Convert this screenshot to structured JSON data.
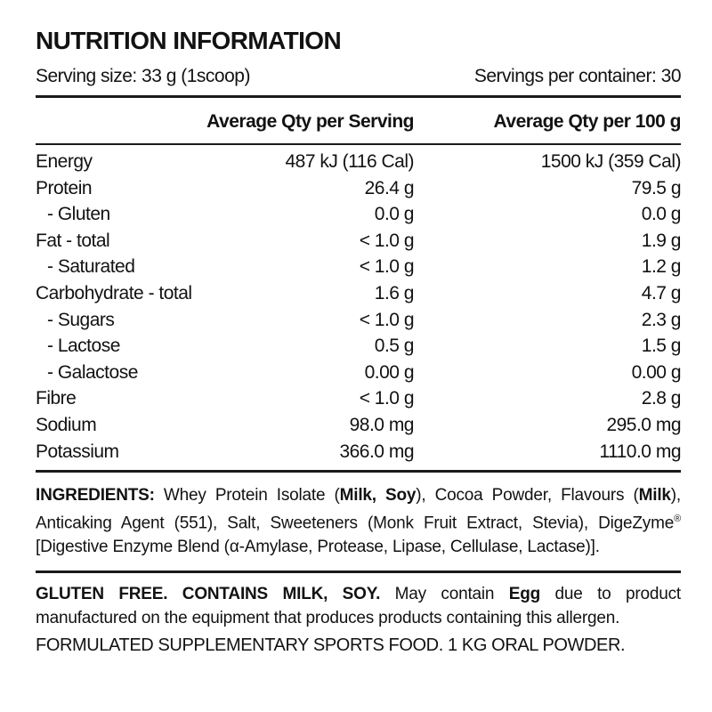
{
  "label": {
    "title": "NUTRITION INFORMATION",
    "serving_size": "Serving size: 33 g (1scoop)",
    "servings_per_container": "Servings per container: 30",
    "table": {
      "columns": [
        "Average Qty per Serving",
        "Average Qty per 100 g"
      ],
      "rows": [
        {
          "name": "Energy",
          "per_serving": "487 kJ (116 Cal)",
          "per_100g": "1500 kJ (359 Cal)"
        },
        {
          "name": "Protein",
          "per_serving": "26.4 g",
          "per_100g": "79.5 g"
        },
        {
          "name": "- Gluten",
          "per_serving": "0.0 g",
          "per_100g": "0.0 g"
        },
        {
          "name": "Fat - total",
          "per_serving": "< 1.0 g",
          "per_100g": "1.9 g"
        },
        {
          "name": "- Saturated",
          "per_serving": "< 1.0 g",
          "per_100g": "1.2 g"
        },
        {
          "name": "Carbohydrate - total",
          "per_serving": "1.6 g",
          "per_100g": "4.7 g"
        },
        {
          "name": "- Sugars",
          "per_serving": "< 1.0 g",
          "per_100g": "2.3 g"
        },
        {
          "name": "- Lactose",
          "per_serving": "0.5 g",
          "per_100g": "1.5 g"
        },
        {
          "name": "- Galactose",
          "per_serving": "0.00 g",
          "per_100g": "0.00 g"
        },
        {
          "name": "Fibre",
          "per_serving": "< 1.0 g",
          "per_100g": "2.8 g"
        },
        {
          "name": "Sodium",
          "per_serving": "98.0 mg",
          "per_100g": "295.0 mg"
        },
        {
          "name": "Potassium",
          "per_serving": "366.0 mg",
          "per_100g": "1110.0 mg"
        }
      ]
    },
    "ingredients": {
      "segments": [
        {
          "text": "INGREDIENTS: ",
          "style": "bold"
        },
        {
          "text": "Whey Protein Isolate (",
          "style": "normal"
        },
        {
          "text": "Milk, Soy",
          "style": "bold"
        },
        {
          "text": "), Cocoa Powder, Flavours (",
          "style": "normal"
        },
        {
          "text": "Milk",
          "style": "bold"
        },
        {
          "text": "), Anticaking Agent (551), Salt, Sweeteners (Monk Fruit Extract, Stevia), DigeZyme",
          "style": "normal"
        },
        {
          "text": "®",
          "style": "superscript"
        },
        {
          "text": " [Digestive Enzyme Blend (α-Amylase, Protease, Lipase, Cellulase, Lactase)].",
          "style": "normal"
        }
      ]
    },
    "allergen": {
      "segments": [
        {
          "text": "GLUTEN FREE. CONTAINS MILK, SOY. ",
          "style": "bold"
        },
        {
          "text": "May contain ",
          "style": "normal"
        },
        {
          "text": "Egg",
          "style": "bold"
        },
        {
          "text": " due to product manufactured on the equipment that produces products containing this allergen.",
          "style": "normal"
        }
      ]
    },
    "formulated": "FORMULATED SUPPLEMENTARY SPORTS FOOD. 1 KG ORAL POWDER."
  },
  "colors": {
    "background": "#ffffff",
    "text": "#121212",
    "rule": "#1a1a1a"
  }
}
